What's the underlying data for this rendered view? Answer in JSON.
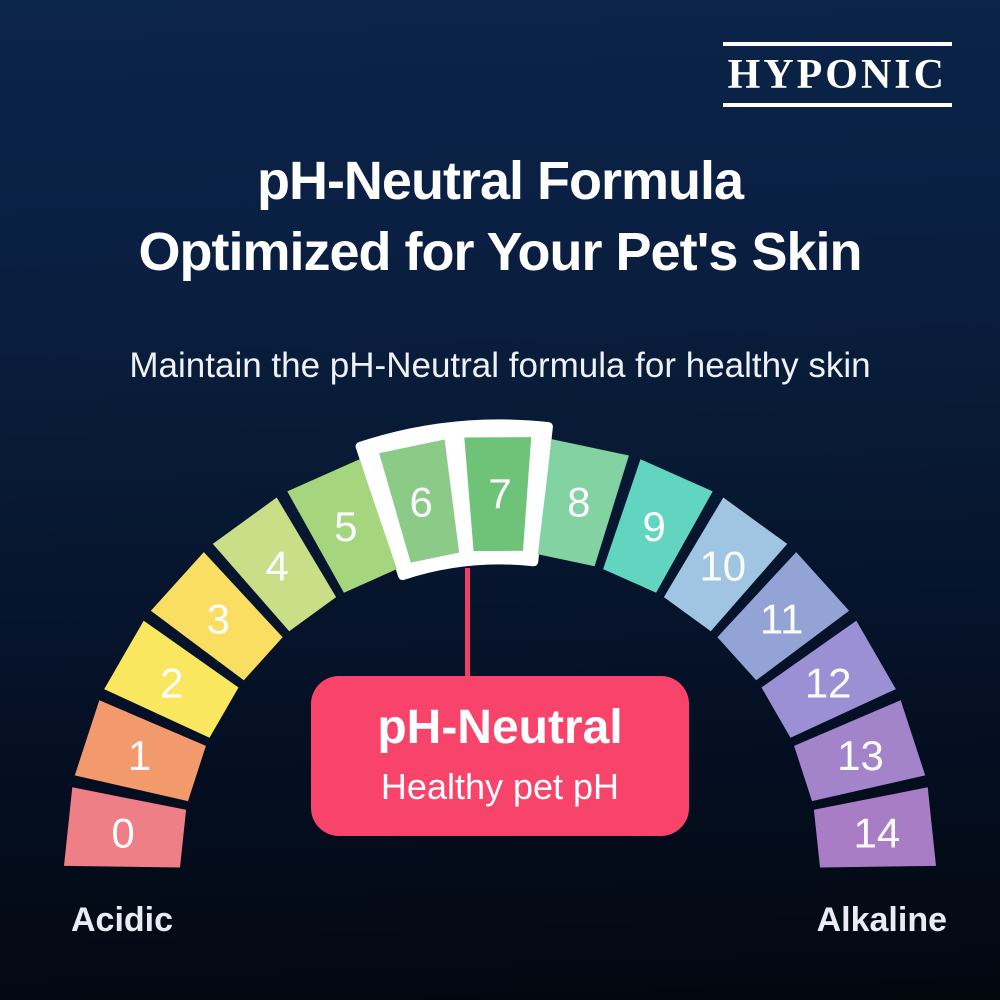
{
  "brand": {
    "name": "HYPONIC"
  },
  "header": {
    "title_line1": "pH-Neutral Formula",
    "title_line2": "Optimized for Your Pet's Skin",
    "subtitle": "Maintain the pH-Neutral formula for healthy skin"
  },
  "theme": {
    "background_top": "#0b2449",
    "background_bottom": "#03080f",
    "text_color": "#ffffff"
  },
  "chart_data": {
    "type": "gauge",
    "scale_min": 0,
    "scale_max": 14,
    "left_label": "Acidic",
    "right_label": "Alkaline",
    "number_color": "#fbfcfd",
    "segments": [
      {
        "value": 0,
        "color": "#ee7f87"
      },
      {
        "value": 1,
        "color": "#f39a6c"
      },
      {
        "value": 2,
        "color": "#f8e75f"
      },
      {
        "value": 3,
        "color": "#f9de62"
      },
      {
        "value": 4,
        "color": "#cade87"
      },
      {
        "value": 5,
        "color": "#a5d57d"
      },
      {
        "value": 6,
        "color": "#8cca87"
      },
      {
        "value": 7,
        "color": "#6fc378"
      },
      {
        "value": 8,
        "color": "#82d2a2"
      },
      {
        "value": 9,
        "color": "#61d5bf"
      },
      {
        "value": 10,
        "color": "#a0c5e3"
      },
      {
        "value": 11,
        "color": "#94a3d5"
      },
      {
        "value": 12,
        "color": "#9a90d3"
      },
      {
        "value": 13,
        "color": "#a383ca"
      },
      {
        "value": 14,
        "color": "#a97dc6"
      }
    ],
    "highlight_values": [
      6,
      7
    ],
    "highlight_frame_color": "#ffffff",
    "callout": {
      "title": "pH-Neutral",
      "subtitle": "Healthy pet pH",
      "color": "#f8446a",
      "connector_color": "#f23e66",
      "points_to": 7
    }
  }
}
